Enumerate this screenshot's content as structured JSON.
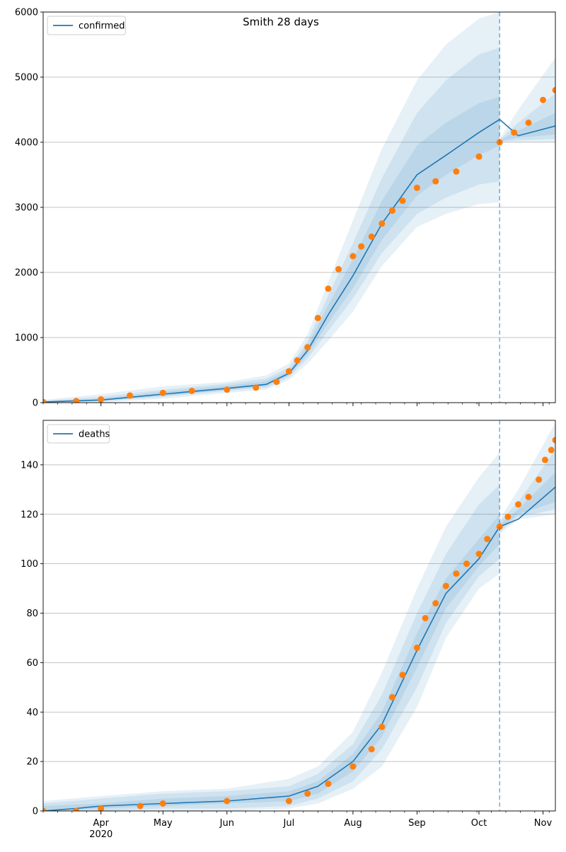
{
  "figure": {
    "title": "Smith 28 days"
  },
  "chart_data": [
    {
      "type": "line",
      "title": "Smith 28 days",
      "legend": {
        "label": "confirmed",
        "placement": "top-left"
      },
      "ylim": [
        0,
        6000
      ],
      "yticks": [
        0,
        1000,
        2000,
        3000,
        4000,
        5000,
        6000
      ],
      "xticks": [
        {
          "date": "2020-04-01",
          "label": "Apr"
        },
        {
          "date": "2020-05-01",
          "label": "May"
        },
        {
          "date": "2020-06-01",
          "label": "Jun"
        },
        {
          "date": "2020-07-01",
          "label": "Jul"
        },
        {
          "date": "2020-08-01",
          "label": "Aug"
        },
        {
          "date": "2020-09-01",
          "label": "Sep"
        },
        {
          "date": "2020-10-01",
          "label": "Oct"
        },
        {
          "date": "2020-11-01",
          "label": "Nov"
        }
      ],
      "xlim": [
        "2020-03-04",
        "2020-11-07"
      ],
      "forecast_split": "2020-10-11",
      "grid": "y",
      "series": [
        {
          "name": "confirmed",
          "color": "#1f77b4",
          "x": [
            "2020-03-04",
            "2020-04-01",
            "2020-05-01",
            "2020-06-01",
            "2020-06-20",
            "2020-07-01",
            "2020-07-10",
            "2020-07-20",
            "2020-08-01",
            "2020-08-15",
            "2020-09-01",
            "2020-09-15",
            "2020-10-01",
            "2020-10-11",
            "2020-10-20",
            "2020-11-07"
          ],
          "values": [
            10,
            40,
            130,
            220,
            280,
            450,
            800,
            1350,
            1950,
            2750,
            3500,
            3800,
            4150,
            4350,
            4100,
            4250
          ]
        },
        {
          "name": "",
          "kind": "observed",
          "color": "#ff7f0e",
          "x": [
            "2020-03-04",
            "2020-03-20",
            "2020-04-01",
            "2020-04-15",
            "2020-05-01",
            "2020-05-15",
            "2020-06-01",
            "2020-06-15",
            "2020-06-25",
            "2020-07-01",
            "2020-07-05",
            "2020-07-10",
            "2020-07-15",
            "2020-07-20",
            "2020-07-25",
            "2020-08-01",
            "2020-08-05",
            "2020-08-10",
            "2020-08-15",
            "2020-08-20",
            "2020-08-25",
            "2020-09-01",
            "2020-09-10",
            "2020-09-20",
            "2020-10-01",
            "2020-10-11",
            "2020-10-18",
            "2020-10-25",
            "2020-11-01",
            "2020-11-07"
          ],
          "values": [
            10,
            25,
            50,
            110,
            150,
            180,
            200,
            230,
            320,
            480,
            650,
            850,
            1300,
            1750,
            2050,
            2250,
            2400,
            2550,
            2750,
            2950,
            3100,
            3300,
            3400,
            3550,
            3780,
            4000,
            4150,
            4300,
            4650,
            4800
          ]
        }
      ],
      "bands": [
        {
          "x": [
            "2020-03-04",
            "2020-04-01",
            "2020-05-01",
            "2020-06-01",
            "2020-06-20",
            "2020-07-01",
            "2020-07-10",
            "2020-07-20",
            "2020-08-01",
            "2020-08-15",
            "2020-09-01",
            "2020-09-15",
            "2020-10-01",
            "2020-10-11"
          ],
          "bands": [
            {
              "lower": [
                0,
                5,
                60,
                150,
                200,
                350,
                600,
                950,
                1400,
                2100,
                2700,
                2900,
                3050,
                3080
              ],
              "upper": [
                40,
                130,
                250,
                320,
                420,
                600,
                1050,
                1850,
                2800,
                3900,
                4950,
                5500,
                5900,
                6000
              ]
            },
            {
              "lower": [
                0,
                20,
                90,
                180,
                230,
                390,
                680,
                1100,
                1600,
                2300,
                2900,
                3150,
                3350,
                3400
              ],
              "upper": [
                30,
                90,
                200,
                290,
                370,
                540,
                950,
                1650,
                2450,
                3450,
                4450,
                4950,
                5350,
                5450
              ]
            },
            {
              "lower": [
                5,
                30,
                105,
                195,
                255,
                420,
                740,
                1220,
                1760,
                2500,
                3180,
                3500,
                3800,
                3950
              ],
              "upper": [
                20,
                60,
                170,
                260,
                330,
                490,
                880,
                1500,
                2200,
                3100,
                3950,
                4300,
                4600,
                4700
              ]
            }
          ]
        },
        {
          "x": [
            "2020-10-11",
            "2020-10-20",
            "2020-11-07"
          ],
          "bands": [
            {
              "lower": [
                4000,
                4000,
                4000
              ],
              "upper": [
                4050,
                4500,
                5300
              ]
            },
            {
              "lower": [
                4010,
                4030,
                4050
              ],
              "upper": [
                4040,
                4300,
                4750
              ]
            },
            {
              "lower": [
                4020,
                4070,
                4120
              ],
              "upper": [
                4030,
                4180,
                4450
              ]
            }
          ]
        }
      ]
    },
    {
      "type": "line",
      "legend": {
        "label": "deaths",
        "placement": "top-left"
      },
      "ylim": [
        0,
        158
      ],
      "yticks": [
        0,
        20,
        40,
        60,
        80,
        100,
        120,
        140
      ],
      "xticks": [
        {
          "date": "2020-04-01",
          "label": "Apr"
        },
        {
          "date": "2020-05-01",
          "label": "May"
        },
        {
          "date": "2020-06-01",
          "label": "Jun"
        },
        {
          "date": "2020-07-01",
          "label": "Jul"
        },
        {
          "date": "2020-08-01",
          "label": "Aug"
        },
        {
          "date": "2020-09-01",
          "label": "Sep"
        },
        {
          "date": "2020-10-01",
          "label": "Oct"
        },
        {
          "date": "2020-11-01",
          "label": "Nov"
        }
      ],
      "year_label": "2020",
      "xlim": [
        "2020-03-04",
        "2020-11-07"
      ],
      "forecast_split": "2020-10-11",
      "grid": "y",
      "series": [
        {
          "name": "deaths",
          "color": "#1f77b4",
          "x": [
            "2020-03-04",
            "2020-03-20",
            "2020-04-01",
            "2020-05-01",
            "2020-06-01",
            "2020-07-01",
            "2020-07-15",
            "2020-08-01",
            "2020-08-15",
            "2020-09-01",
            "2020-09-15",
            "2020-10-01",
            "2020-10-11",
            "2020-10-20",
            "2020-11-07"
          ],
          "values": [
            0,
            1,
            2,
            3,
            4,
            6,
            10,
            20,
            35,
            65,
            88,
            102,
            115,
            118,
            131
          ]
        },
        {
          "name": "",
          "kind": "observed",
          "color": "#ff7f0e",
          "x": [
            "2020-03-04",
            "2020-03-20",
            "2020-04-01",
            "2020-04-20",
            "2020-05-01",
            "2020-06-01",
            "2020-07-01",
            "2020-07-10",
            "2020-07-20",
            "2020-08-01",
            "2020-08-10",
            "2020-08-15",
            "2020-08-20",
            "2020-08-25",
            "2020-09-01",
            "2020-09-05",
            "2020-09-10",
            "2020-09-15",
            "2020-09-20",
            "2020-09-25",
            "2020-10-01",
            "2020-10-05",
            "2020-10-11",
            "2020-10-15",
            "2020-10-20",
            "2020-10-25",
            "2020-10-30",
            "2020-11-02",
            "2020-11-05",
            "2020-11-07"
          ],
          "values": [
            0,
            0,
            1,
            2,
            3,
            4,
            4,
            7,
            11,
            18,
            25,
            34,
            46,
            55,
            66,
            78,
            84,
            91,
            96,
            100,
            104,
            110,
            115,
            119,
            124,
            127,
            134,
            142,
            146,
            150
          ]
        }
      ],
      "bands": [
        {
          "x": [
            "2020-03-04",
            "2020-04-01",
            "2020-05-01",
            "2020-06-01",
            "2020-07-01",
            "2020-07-15",
            "2020-08-01",
            "2020-08-15",
            "2020-09-01",
            "2020-09-15",
            "2020-10-01",
            "2020-10-11"
          ],
          "bands": [
            {
              "lower": [
                0,
                0,
                0,
                0,
                1,
                3,
                9,
                18,
                42,
                70,
                90,
                96
              ],
              "upper": [
                4,
                6,
                8,
                9,
                13,
                18,
                32,
                56,
                90,
                115,
                135,
                145
              ]
            },
            {
              "lower": [
                0,
                0,
                1,
                1,
                2,
                5,
                12,
                25,
                50,
                76,
                95,
                102
              ],
              "upper": [
                3,
                5,
                7,
                8,
                10,
                15,
                27,
                47,
                80,
                104,
                124,
                132
              ]
            },
            {
              "lower": [
                0,
                1,
                2,
                3,
                4,
                7,
                16,
                30,
                58,
                82,
                99,
                108
              ],
              "upper": [
                2,
                3,
                5,
                6,
                8,
                12,
                23,
                40,
                72,
                94,
                110,
                120
              ]
            }
          ]
        },
        {
          "x": [
            "2020-10-11",
            "2020-10-20",
            "2020-11-07"
          ],
          "bands": [
            {
              "lower": [
                112,
                118,
                120
              ],
              "upper": [
                118,
                130,
                157
              ]
            },
            {
              "lower": [
                113,
                119,
                122
              ],
              "upper": [
                117,
                125,
                146
              ]
            },
            {
              "lower": [
                114,
                120,
                125
              ],
              "upper": [
                116,
                122,
                137
              ]
            }
          ]
        }
      ]
    }
  ]
}
